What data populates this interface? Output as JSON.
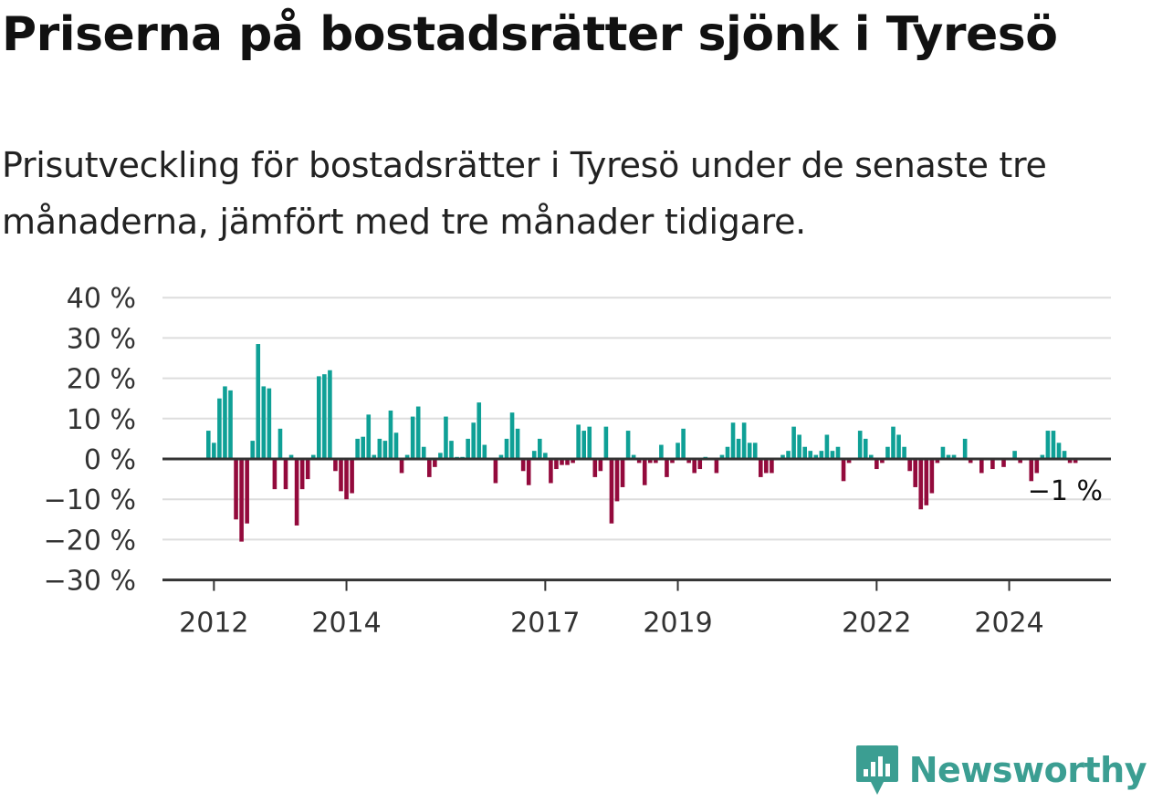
{
  "title": "Priserna på bostadsrätter sjönk i Tyresö",
  "subtitle": "Prisutveckling för bostadsrätter i Tyresö under de senaste tre månaderna, jämfört med tre månader tidigare.",
  "brand": "Newsworthy",
  "colors": {
    "positive": "#0fa096",
    "negative": "#930a3c",
    "brand": "#3b9e92",
    "grid": "#dddddd",
    "axis": "#333333"
  },
  "chart_data": {
    "type": "bar",
    "x_start": "2011-12",
    "y_ticks": [
      "40 %",
      "30 %",
      "20 %",
      "10 %",
      "0 %",
      "−10 %",
      "−20 %",
      "−30 %"
    ],
    "y_tick_values": [
      40,
      30,
      20,
      10,
      0,
      -10,
      -20,
      -30
    ],
    "ylim": [
      -30,
      40
    ],
    "x_ticks": [
      {
        "label": "2012",
        "date": "2012-01"
      },
      {
        "label": "2014",
        "date": "2014-01"
      },
      {
        "label": "2017",
        "date": "2017-01"
      },
      {
        "label": "2019",
        "date": "2019-01"
      },
      {
        "label": "2022",
        "date": "2022-01"
      },
      {
        "label": "2024",
        "date": "2024-01"
      }
    ],
    "last_value_label": "−1 %",
    "values": [
      7,
      4,
      15,
      18,
      17,
      -15,
      -20.5,
      -16,
      4.5,
      28.5,
      18,
      17.5,
      -7.5,
      7.5,
      -7.5,
      1,
      -16.5,
      -7.5,
      -5,
      1,
      20.5,
      21,
      22,
      -3,
      -8,
      -10,
      -8.5,
      5,
      5.5,
      11,
      1,
      5,
      4.5,
      12,
      6.5,
      -3.5,
      1,
      10.5,
      13,
      3,
      -4.5,
      -2,
      1.5,
      10.5,
      4.5,
      0.5,
      0.5,
      5,
      9,
      14,
      3.5,
      0,
      -6,
      1,
      5,
      11.5,
      7.5,
      -3,
      -6.5,
      2,
      5,
      1.5,
      -6,
      -2.5,
      -1.5,
      -1.5,
      -1,
      8.5,
      7,
      8,
      -4.5,
      -3,
      8,
      -16,
      -10.5,
      -7,
      7,
      1,
      -1,
      -6.5,
      -1,
      -1,
      3.5,
      -4.5,
      -1,
      4,
      7.5,
      -1,
      -3.5,
      -2.5,
      0.5,
      0,
      -3.5,
      1,
      3,
      9,
      5,
      9,
      4,
      4,
      -4.5,
      -3.5,
      -3.5,
      0,
      1,
      2,
      8,
      6,
      3,
      2,
      1,
      2,
      6,
      2,
      3,
      -5.5,
      -1,
      0,
      7,
      5,
      1,
      -2.5,
      -1,
      3,
      8,
      6,
      3,
      -3,
      -7,
      -12.5,
      -11.5,
      -8.5,
      -1,
      3,
      1,
      1,
      0,
      5,
      -1,
      0,
      -3.5,
      0,
      -2.5,
      0,
      -2,
      0,
      2,
      -1,
      0,
      -5.5,
      -3.5,
      1,
      7,
      7,
      4,
      2,
      -1,
      -1
    ]
  }
}
